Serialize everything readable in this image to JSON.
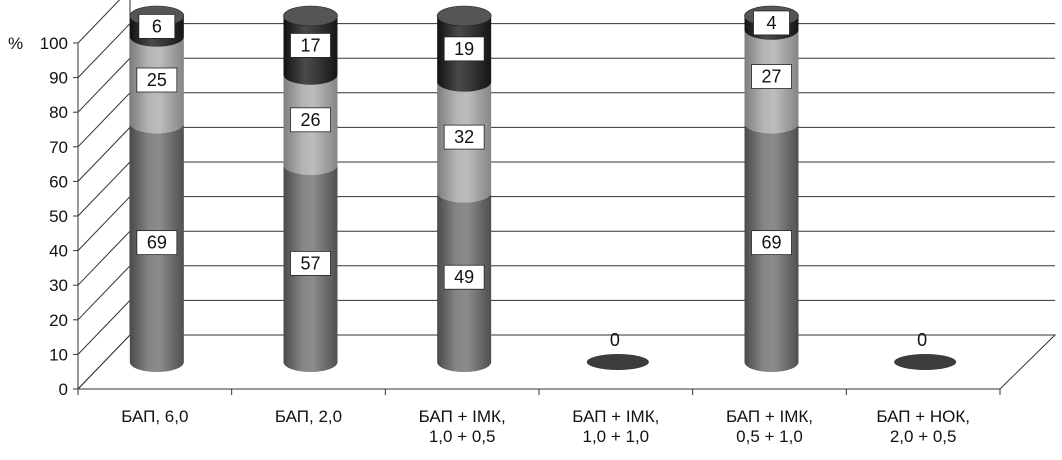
{
  "chart_data": {
    "type": "bar",
    "stacked": true,
    "three_d": true,
    "y_unit_label": "%",
    "ylim": [
      0,
      100
    ],
    "y_ticks": [
      0,
      10,
      20,
      30,
      40,
      50,
      60,
      70,
      80,
      90,
      100
    ],
    "grid": true,
    "categories": [
      [
        "БАП, 6,0"
      ],
      [
        "БАП, 2,0"
      ],
      [
        "БАП + ІМК,",
        "1,0 + 0,5"
      ],
      [
        "БАП + ІМК,",
        "1,0 + 1,0"
      ],
      [
        "БАП + ІМК,",
        "0,5 + 1,0"
      ],
      [
        "БАП + НОК,",
        "2,0 + 0,5"
      ]
    ],
    "series": [
      {
        "values": [
          69,
          57,
          49,
          0,
          69,
          0
        ],
        "color": "#6f6f6f"
      },
      {
        "values": [
          25,
          26,
          32,
          0,
          27,
          0
        ],
        "color": "#9d9d9d"
      },
      {
        "values": [
          6,
          17,
          19,
          0,
          4,
          0
        ],
        "color": "#2a2a2a"
      }
    ],
    "zero_labels": [
      "",
      "",
      "",
      "0",
      "",
      "0"
    ]
  }
}
